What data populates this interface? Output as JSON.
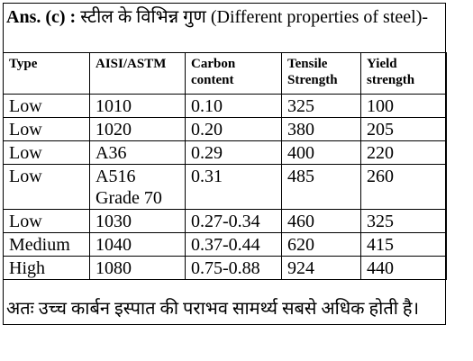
{
  "heading": {
    "answer_label": "Ans. (c) :",
    "text": "स्टील के विभिन्न गुण (Different properties of steel)-"
  },
  "table": {
    "headers": [
      "Type",
      "AISI/ASTM",
      "Carbon content",
      "Tensile Strength",
      "Yield strength"
    ],
    "rows": [
      [
        "Low",
        "1010",
        "0.10",
        "325",
        "100"
      ],
      [
        "Low",
        "1020",
        "0.20",
        "380",
        "205"
      ],
      [
        "Low",
        "A36",
        "0.29",
        "400",
        "220"
      ],
      [
        "Low",
        "A516 Grade 70",
        "0.31",
        "485",
        "260"
      ],
      [
        "Low",
        "1030",
        "0.27-0.34",
        "460",
        "325"
      ],
      [
        "Medium",
        "1040",
        "0.37-0.44",
        "620",
        "415"
      ],
      [
        "High",
        "1080",
        "0.75-0.88",
        "924",
        "440"
      ]
    ]
  },
  "conclusion": "अतः उच्च कार्बन इस्पात की पराभव सामर्थ्य सबसे अधिक होती है।"
}
